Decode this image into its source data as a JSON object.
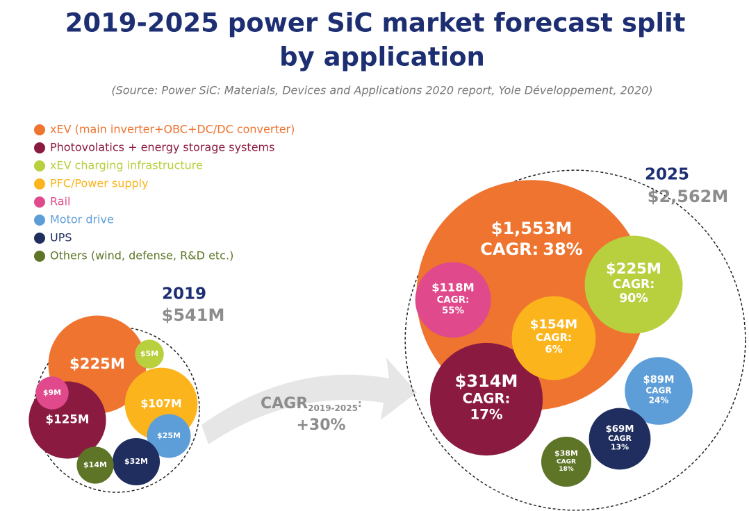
{
  "chart_data": {
    "type": "bubble",
    "title": [
      "2019-2025 power SiC market forecast split",
      "by application"
    ],
    "subtitle": "(Source: Power SiC: Materials, Devices and Applications 2020 report, Yole Développement, 2020)",
    "categories": [
      "xEV (main inverter+OBC+DC/DC converter)",
      "Photovolatics + energy storage systems",
      "xEV charging infrastructure",
      "PFC/Power supply",
      "Rail",
      "Motor drive",
      "UPS",
      "Others (wind, defense, R&D etc.)"
    ],
    "colors": [
      "#ee7430",
      "#8a1a40",
      "#b8cf3e",
      "#fbb41c",
      "#e0498b",
      "#5e9ed8",
      "#1f2d5f",
      "#5e7527"
    ],
    "groups": [
      {
        "name": "2019",
        "total": 541,
        "total_label": "$541M",
        "values": [
          225,
          125,
          5,
          107,
          9,
          25,
          32,
          14
        ],
        "value_labels": [
          "$225M",
          "$125M",
          "$5M",
          "$107M",
          "$9M",
          "$25M",
          "$32M",
          "$14M"
        ]
      },
      {
        "name": "2025",
        "total": 2562,
        "total_label": "$2,562M",
        "values": [
          1553,
          314,
          225,
          154,
          118,
          89,
          69,
          38
        ],
        "value_labels": [
          "$1,553M",
          "$314M",
          "$225M",
          "$154M",
          "$118M",
          "$89M",
          "$69M",
          "$38M"
        ],
        "cagr_prefix": [
          "CAGR:",
          "CAGR:",
          "CAGR:",
          "CAGR:",
          "CAGR:",
          "CAGR",
          "CAGR",
          "CAGR"
        ],
        "cagr": [
          38,
          17,
          90,
          6,
          55,
          24,
          13,
          18
        ],
        "cagr_labels": [
          "38%",
          "17%",
          "90%",
          "6%",
          "55%",
          "24%",
          "13%",
          "18%"
        ]
      }
    ],
    "growth": {
      "text": "CAGR",
      "period": "2019-2025",
      "colon": ":",
      "value": 30,
      "value_label": "+30%"
    }
  }
}
